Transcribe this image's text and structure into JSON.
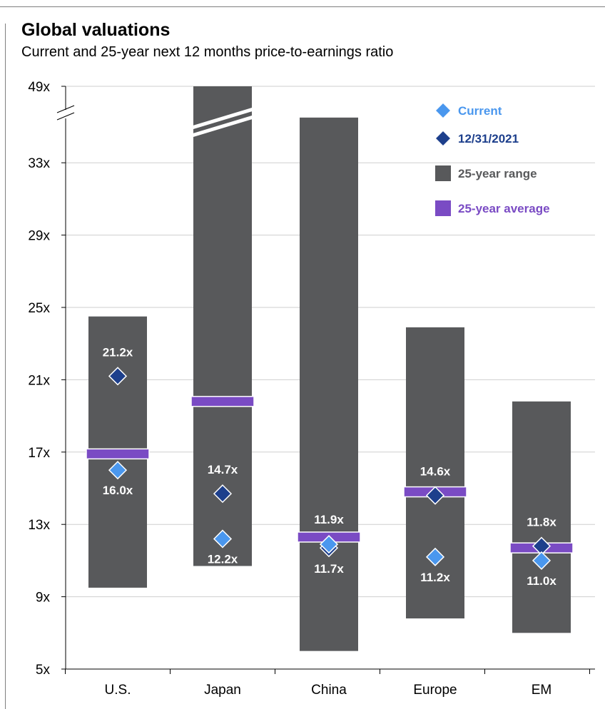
{
  "chart_data": {
    "type": "range-bar",
    "title": "Global valuations",
    "subtitle": "Current and 25-year next 12 months price-to-earnings ratio",
    "categories": [
      "U.S.",
      "Japan",
      "China",
      "Europe",
      "EM"
    ],
    "y_ticks": [
      "5x",
      "9x",
      "13x",
      "17x",
      "21x",
      "25x",
      "29x",
      "33x",
      "49x"
    ],
    "axis_break": {
      "below_label": "33x",
      "top_label": "49x"
    },
    "range_low": [
      9.5,
      10.7,
      6.0,
      7.8,
      7.0
    ],
    "range_high": [
      24.5,
      49,
      35.5,
      23.9,
      19.8
    ],
    "range_truncated": [
      false,
      true,
      false,
      false,
      false
    ],
    "average": [
      16.9,
      19.8,
      12.3,
      14.8,
      11.7
    ],
    "current": [
      16.0,
      12.2,
      11.9,
      11.2,
      11.0
    ],
    "current_labels": [
      "16.0x",
      "12.2x",
      "11.9x",
      "11.2x",
      "11.0x"
    ],
    "dec2021": [
      21.2,
      14.7,
      11.7,
      14.6,
      11.8
    ],
    "dec2021_labels": [
      "21.2x",
      "14.7x",
      "11.7x",
      "14.6x",
      "11.8x"
    ],
    "grid": true,
    "legend": {
      "placement": "top-right",
      "items": [
        {
          "label": "Current",
          "marker": "diamond",
          "color": "#4a97ee"
        },
        {
          "label": "12/31/2021",
          "marker": "diamond",
          "color": "#1d3f8c"
        },
        {
          "label": "25-year range",
          "marker": "square",
          "color": "#58595b"
        },
        {
          "label": "25-year average",
          "marker": "square",
          "color": "#7a4bc4"
        }
      ]
    },
    "colors": {
      "range": "#58595b",
      "average": "#7a4bc4",
      "current": "#4a97ee",
      "dec2021": "#1d3f8c",
      "legend_current_text": "#4a97ee",
      "legend_dec2021_text": "#1d3f8c",
      "legend_range_text": "#58595b",
      "legend_average_text": "#7a4bc4",
      "grid": "#cfcfcf"
    }
  }
}
